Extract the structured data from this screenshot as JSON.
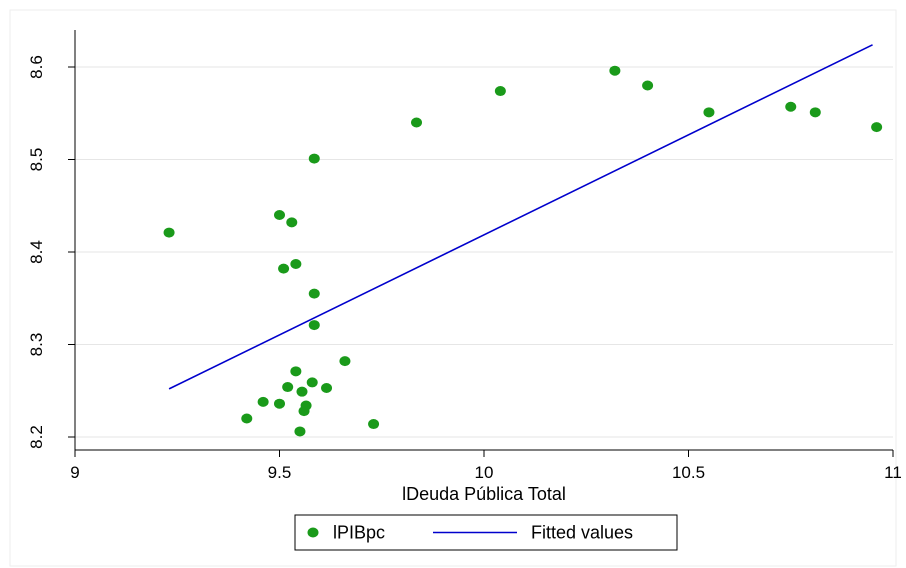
{
  "chart_data": {
    "type": "scatter",
    "title": "",
    "xlabel": "lDeuda Pública Total",
    "ylabel": "",
    "xlim": [
      9,
      11
    ],
    "ylim": [
      8.2,
      8.6
    ],
    "x_ticks": [
      "9",
      "9.5",
      "10",
      "10.5",
      "11"
    ],
    "y_ticks": [
      "8.2",
      "8.3",
      "8.4",
      "8.5",
      "8.6"
    ],
    "grid": "horizontal",
    "legend_position": "bottom",
    "series": [
      {
        "name": "lPIBpc",
        "kind": "scatter",
        "color": "#1a9a1a",
        "points": [
          [
            9.23,
            8.421
          ],
          [
            9.42,
            8.22
          ],
          [
            9.46,
            8.238
          ],
          [
            9.5,
            8.236
          ],
          [
            9.5,
            8.44
          ],
          [
            9.51,
            8.382
          ],
          [
            9.52,
            8.254
          ],
          [
            9.53,
            8.432
          ],
          [
            9.54,
            8.387
          ],
          [
            9.54,
            8.271
          ],
          [
            9.55,
            8.206
          ],
          [
            9.555,
            8.249
          ],
          [
            9.56,
            8.228
          ],
          [
            9.565,
            8.234
          ],
          [
            9.58,
            8.259
          ],
          [
            9.585,
            8.355
          ],
          [
            9.585,
            8.321
          ],
          [
            9.585,
            8.501
          ],
          [
            9.615,
            8.253
          ],
          [
            9.66,
            8.282
          ],
          [
            9.73,
            8.214
          ],
          [
            9.835,
            8.54
          ],
          [
            10.04,
            8.574
          ],
          [
            10.32,
            8.596
          ],
          [
            10.4,
            8.58
          ],
          [
            10.55,
            8.551
          ],
          [
            10.75,
            8.557
          ],
          [
            10.81,
            8.551
          ],
          [
            10.96,
            8.535
          ]
        ]
      },
      {
        "name": "Fitted values",
        "kind": "line",
        "color": "#0000cc",
        "points": [
          [
            9.23,
            8.252
          ],
          [
            10.95,
            8.624
          ]
        ]
      }
    ]
  }
}
